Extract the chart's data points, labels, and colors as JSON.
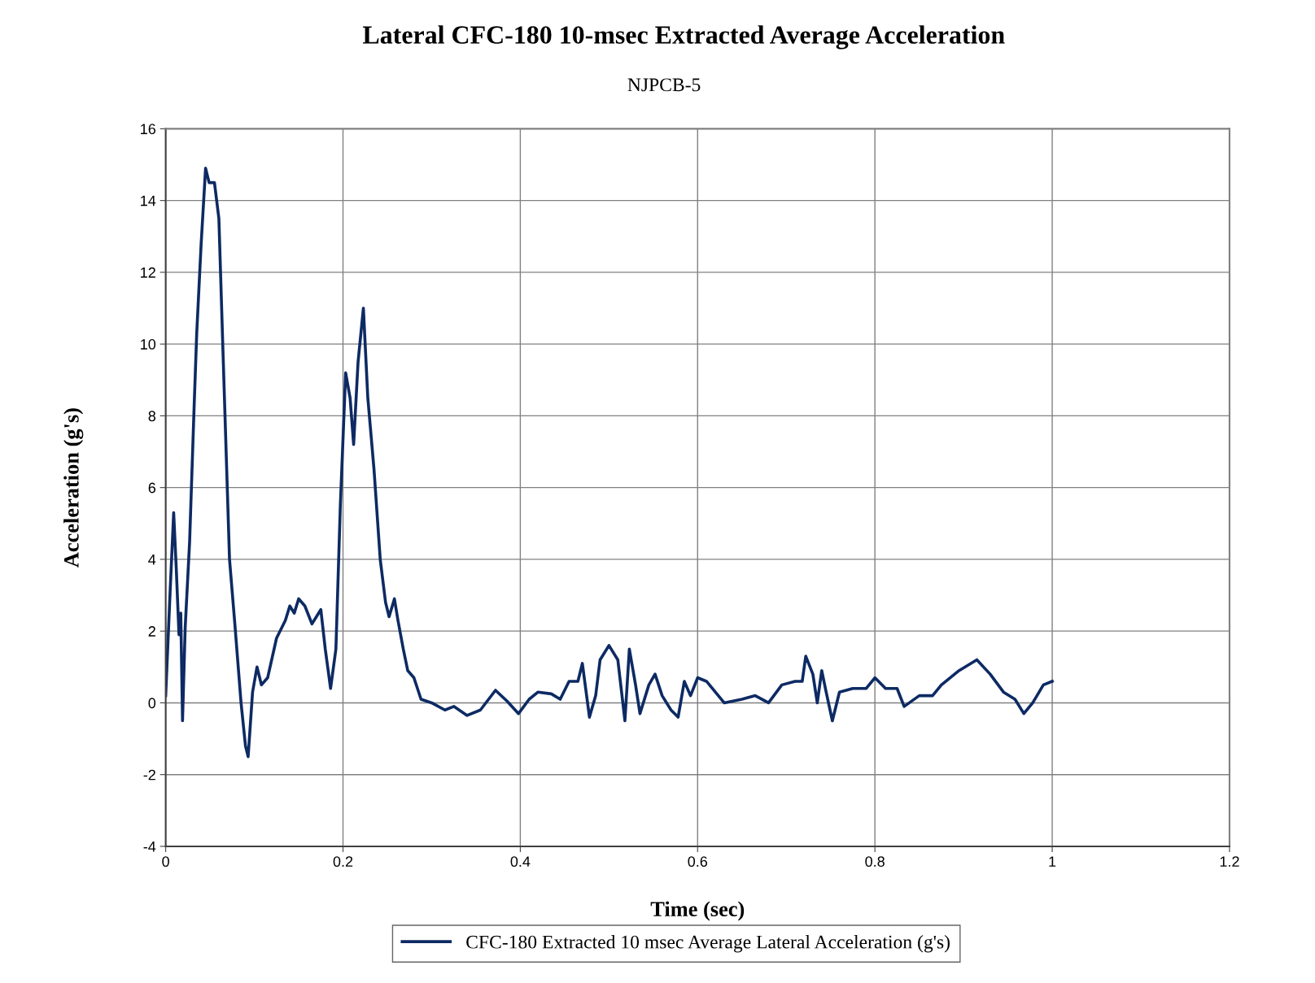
{
  "chart_data": {
    "type": "line",
    "title": "Lateral CFC-180 10-msec Extracted Average Acceleration",
    "subtitle": "NJPCB-5",
    "xlabel": "Time (sec)",
    "ylabel": "Acceleration (g's)",
    "xlim": [
      0,
      1.2
    ],
    "xticks": [
      0,
      0.2,
      0.4,
      0.6,
      0.8,
      1,
      1.2
    ],
    "ylim": [
      -4,
      16
    ],
    "yticks": [
      -4,
      -2,
      0,
      2,
      4,
      6,
      8,
      10,
      12,
      14,
      16
    ],
    "grid": true,
    "legend": "bottom",
    "marker": "none",
    "line_style": "solid",
    "series": [
      {
        "name": "CFC-180 Extracted 10 msec Average Lateral Acceleration (g's)",
        "color": "#0d2a63",
        "x": [
          0,
          0.005,
          0.009,
          0.012,
          0.015,
          0.017,
          0.019,
          0.022,
          0.027,
          0.032,
          0.035,
          0.04,
          0.045,
          0.049,
          0.055,
          0.06,
          0.065,
          0.072,
          0.078,
          0.085,
          0.09,
          0.093,
          0.098,
          0.103,
          0.108,
          0.115,
          0.125,
          0.135,
          0.14,
          0.145,
          0.15,
          0.157,
          0.165,
          0.175,
          0.18,
          0.186,
          0.192,
          0.197,
          0.203,
          0.208,
          0.212,
          0.217,
          0.223,
          0.228,
          0.235,
          0.242,
          0.248,
          0.252,
          0.258,
          0.262,
          0.268,
          0.273,
          0.28,
          0.288,
          0.3,
          0.315,
          0.325,
          0.34,
          0.355,
          0.372,
          0.385,
          0.398,
          0.41,
          0.42,
          0.435,
          0.445,
          0.455,
          0.465,
          0.47,
          0.478,
          0.485,
          0.49,
          0.5,
          0.51,
          0.518,
          0.523,
          0.53,
          0.535,
          0.545,
          0.552,
          0.56,
          0.57,
          0.578,
          0.585,
          0.592,
          0.6,
          0.61,
          0.62,
          0.63,
          0.65,
          0.665,
          0.68,
          0.695,
          0.71,
          0.718,
          0.722,
          0.73,
          0.735,
          0.74,
          0.745,
          0.752,
          0.76,
          0.775,
          0.79,
          0.8,
          0.812,
          0.825,
          0.833,
          0.85,
          0.865,
          0.875,
          0.895,
          0.915,
          0.93,
          0.945,
          0.958,
          0.968,
          0.978,
          0.99,
          1.0
        ],
        "values": [
          0.2,
          3.1,
          5.3,
          3.7,
          1.9,
          2.5,
          -0.5,
          2.1,
          4.5,
          8.2,
          10.3,
          12.8,
          14.9,
          14.5,
          14.5,
          13.5,
          9.5,
          4,
          2.2,
          0,
          -1.2,
          -1.5,
          0.3,
          1.0,
          0.5,
          0.7,
          1.8,
          2.3,
          2.7,
          2.5,
          2.9,
          2.7,
          2.2,
          2.6,
          1.5,
          0.4,
          1.5,
          5.5,
          9.2,
          8.5,
          7.2,
          9.5,
          11.0,
          8.5,
          6.5,
          4.0,
          2.8,
          2.4,
          2.9,
          2.3,
          1.5,
          0.9,
          0.7,
          0.1,
          0.0,
          -0.2,
          -0.1,
          -0.35,
          -0.2,
          0.35,
          0.05,
          -0.3,
          0.1,
          0.3,
          0.25,
          0.1,
          0.6,
          0.6,
          1.1,
          -0.4,
          0.2,
          1.2,
          1.6,
          1.2,
          -0.5,
          1.5,
          0.5,
          -0.3,
          0.5,
          0.8,
          0.2,
          -0.2,
          -0.4,
          0.6,
          0.2,
          0.7,
          0.6,
          0.3,
          0.0,
          0.1,
          0.2,
          0.0,
          0.5,
          0.6,
          0.6,
          1.3,
          0.8,
          0.0,
          0.9,
          0.3,
          -0.5,
          0.3,
          0.4,
          0.4,
          0.7,
          0.4,
          0.4,
          -0.1,
          0.2,
          0.2,
          0.5,
          0.9,
          1.2,
          0.8,
          0.3,
          0.1,
          -0.3,
          0.0,
          0.5,
          0.6
        ]
      }
    ]
  }
}
